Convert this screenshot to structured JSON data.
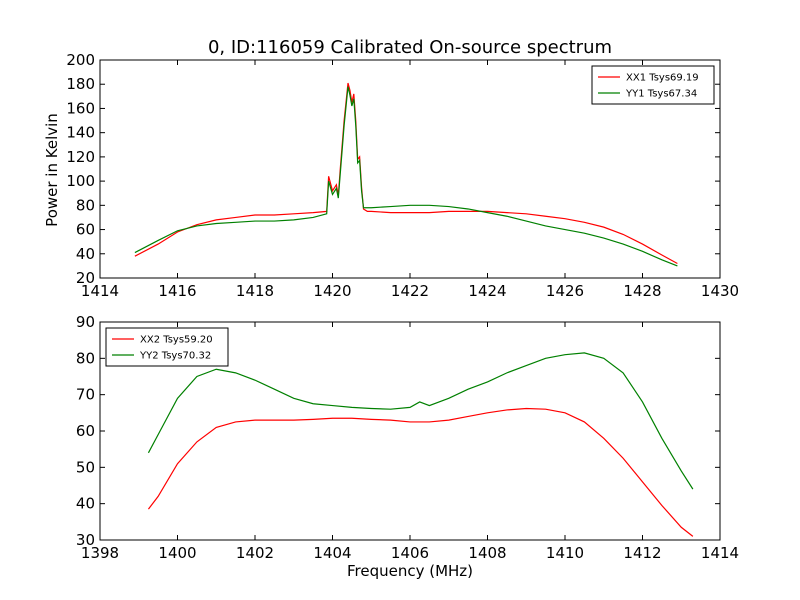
{
  "figure": {
    "title": "0, ID:116059 Calibrated On-source spectrum",
    "xlabel": "Frequency (MHz)",
    "ylabel": "Power in Kelvin"
  },
  "chart_data": [
    {
      "type": "line",
      "title": "0, ID:116059 Calibrated On-source spectrum",
      "xlabel": "",
      "ylabel": "Power in Kelvin",
      "xlim": [
        1414,
        1430
      ],
      "ylim": [
        20,
        200
      ],
      "xticks": [
        "1414",
        "1416",
        "1418",
        "1420",
        "1422",
        "1424",
        "1426",
        "1428",
        "1430"
      ],
      "yticks": [
        "20",
        "40",
        "60",
        "80",
        "100",
        "120",
        "140",
        "160",
        "180",
        "200"
      ],
      "legend_position": "top-right",
      "grid": false,
      "series": [
        {
          "name": "XX1 Tsys69.19",
          "color": "#ff0000",
          "x": [
            1414.9,
            1415.5,
            1416.0,
            1416.5,
            1417.0,
            1417.5,
            1418.0,
            1418.5,
            1419.0,
            1419.5,
            1419.85,
            1419.9,
            1420.0,
            1420.1,
            1420.15,
            1420.2,
            1420.3,
            1420.4,
            1420.45,
            1420.5,
            1420.55,
            1420.6,
            1420.65,
            1420.7,
            1420.75,
            1420.8,
            1420.9,
            1421.0,
            1421.5,
            1422.0,
            1422.5,
            1423.0,
            1423.5,
            1424.0,
            1424.5,
            1425.0,
            1425.5,
            1426.0,
            1426.5,
            1427.0,
            1427.5,
            1428.0,
            1428.5,
            1428.9
          ],
          "y": [
            38,
            48,
            58,
            64,
            68,
            70,
            72,
            72,
            73,
            74,
            75,
            104,
            92,
            97,
            88,
            110,
            150,
            181,
            175,
            165,
            172,
            150,
            118,
            120,
            95,
            77,
            75,
            75,
            74,
            74,
            74,
            75,
            75,
            75,
            74,
            73,
            71,
            69,
            66,
            62,
            56,
            48,
            39,
            32
          ]
        },
        {
          "name": "YY1 Tsys67.34",
          "color": "#008000",
          "x": [
            1414.9,
            1415.5,
            1416.0,
            1416.5,
            1417.0,
            1417.5,
            1418.0,
            1418.5,
            1419.0,
            1419.5,
            1419.85,
            1419.9,
            1420.0,
            1420.1,
            1420.15,
            1420.2,
            1420.3,
            1420.4,
            1420.45,
            1420.5,
            1420.55,
            1420.6,
            1420.65,
            1420.7,
            1420.75,
            1420.8,
            1420.9,
            1421.0,
            1421.5,
            1422.0,
            1422.5,
            1423.0,
            1423.5,
            1424.0,
            1424.5,
            1425.0,
            1425.5,
            1426.0,
            1426.5,
            1427.0,
            1427.5,
            1428.0,
            1428.5,
            1428.9
          ],
          "y": [
            41,
            51,
            59,
            63,
            65,
            66,
            67,
            67,
            68,
            70,
            73,
            100,
            89,
            94,
            86,
            106,
            146,
            178,
            171,
            162,
            168,
            146,
            115,
            117,
            92,
            78,
            78,
            78,
            79,
            80,
            80,
            79,
            77,
            74,
            71,
            67,
            63,
            60,
            57,
            53,
            48,
            42,
            35,
            30
          ]
        }
      ]
    },
    {
      "type": "line",
      "title": "",
      "xlabel": "Frequency (MHz)",
      "ylabel": "",
      "xlim": [
        1398,
        1414
      ],
      "ylim": [
        30,
        90
      ],
      "xticks": [
        "1398",
        "1400",
        "1402",
        "1404",
        "1406",
        "1408",
        "1410",
        "1412",
        "1414"
      ],
      "yticks": [
        "30",
        "40",
        "50",
        "60",
        "70",
        "80",
        "90"
      ],
      "legend_position": "top-left",
      "grid": false,
      "series": [
        {
          "name": "XX2 Tsys59.20",
          "color": "#ff0000",
          "x": [
            1399.25,
            1399.5,
            1400.0,
            1400.5,
            1401.0,
            1401.5,
            1402.0,
            1402.5,
            1403.0,
            1403.5,
            1404.0,
            1404.5,
            1405.0,
            1405.5,
            1406.0,
            1406.5,
            1407.0,
            1407.5,
            1408.0,
            1408.5,
            1409.0,
            1409.5,
            1410.0,
            1410.5,
            1411.0,
            1411.5,
            1412.0,
            1412.5,
            1413.0,
            1413.3
          ],
          "y": [
            38.5,
            42,
            51,
            57,
            61,
            62.5,
            63,
            63,
            63,
            63.2,
            63.5,
            63.5,
            63.2,
            63,
            62.5,
            62.5,
            63,
            64,
            65,
            65.8,
            66.2,
            66,
            65,
            62.5,
            58,
            52.5,
            46,
            39.5,
            33.5,
            31
          ]
        },
        {
          "name": "YY2 Tsys70.32",
          "color": "#008000",
          "x": [
            1399.25,
            1399.5,
            1400.0,
            1400.5,
            1401.0,
            1401.5,
            1402.0,
            1402.5,
            1403.0,
            1403.5,
            1404.0,
            1404.5,
            1405.0,
            1405.5,
            1406.0,
            1406.25,
            1406.5,
            1407.0,
            1407.5,
            1408.0,
            1408.5,
            1409.0,
            1409.5,
            1410.0,
            1410.5,
            1411.0,
            1411.5,
            1412.0,
            1412.5,
            1413.0,
            1413.3
          ],
          "y": [
            54,
            59,
            69,
            75,
            77,
            76,
            74,
            71.5,
            69,
            67.5,
            67,
            66.5,
            66.2,
            66,
            66.5,
            68,
            67,
            69,
            71.5,
            73.5,
            76,
            78,
            80,
            81,
            81.5,
            80,
            76,
            68,
            58,
            49,
            44
          ]
        }
      ]
    }
  ]
}
